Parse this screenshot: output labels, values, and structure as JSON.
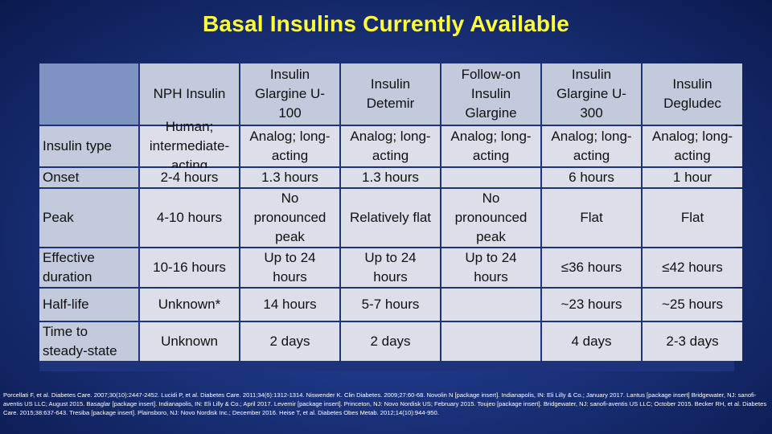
{
  "title": "Basal Insulins Currently Available",
  "columns": [
    "NPH Insulin",
    "Insulin Glargine U-100",
    "Insulin Detemir",
    "Follow-on Insulin Glargine",
    "Insulin Glargine U-300",
    "Insulin Degludec"
  ],
  "rows": [
    {
      "label": "Insulin type",
      "cells": [
        "Human; intermediate-acting",
        "Analog; long-acting",
        "Analog; long-acting",
        "Analog; long-acting",
        "Analog; long-acting",
        "Analog; long-acting"
      ]
    },
    {
      "label": "Onset",
      "cells": [
        "2-4 hours",
        "1.3 hours",
        "1.3 hours",
        "",
        "6 hours",
        "1 hour"
      ]
    },
    {
      "label": "Peak",
      "cells": [
        "4-10 hours",
        "No pronounced peak",
        "Relatively flat",
        "No pronounced peak",
        "Flat",
        "Flat"
      ]
    },
    {
      "label": "Effective duration",
      "cells": [
        "10-16 hours",
        "Up to 24 hours",
        "Up to 24 hours",
        "Up to 24 hours",
        "≤36 hours",
        "≤42 hours"
      ]
    },
    {
      "label": "Half-life",
      "cells": [
        "Unknown*",
        "14 hours",
        "5-7 hours",
        "",
        "~23 hours",
        "~25 hours"
      ]
    },
    {
      "label": "Time to steady-state",
      "cells": [
        "Unknown",
        "2 days",
        "2 days",
        "",
        "4 days",
        "2-3 days"
      ]
    }
  ],
  "references": "Porcellati F, et al. Diabetes Care. 2007;30(10):2447-2452. Lucidi P, et al. Diabetes Care. 2011;34(6):1312-1314. Niswender K. Clin Diabetes. 2009;27:60-68. Novolin N [package insert]. Indianapolis, IN: Eli Lilly & Co.; January 2017. Lantus [package insert] Bridgewater, NJ: sanofi-aventis US LLC; August 2015. Basaglar [package insert]. Indianapolis, IN: Eli Lilly & Co.; April 2017. Levemir [package insert]. Princeton, NJ: Novo Nordisk US; February 2015. Toujeo [package insert]. Bridgewater, NJ: sanofi-aventis US LLC; October 2015. Becker RH, et al. Diabetes Care. 2015;38:637-643. Tresiba [package insert]. Plainsboro, NJ: Novo Nordisk Inc.; December 2016. Heise T, et al. Diabetes Obes Metab. 2012;14(10):944-950."
}
